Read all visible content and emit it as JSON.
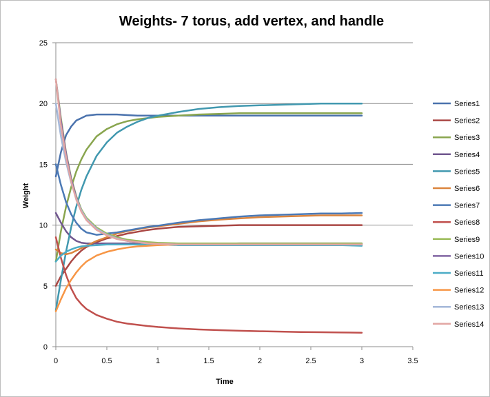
{
  "chart_data": {
    "type": "line",
    "title": "Weights- 7 torus, add vertex, and handle",
    "xlabel": "Time",
    "ylabel": "Weight",
    "xlim": [
      0,
      3.5
    ],
    "ylim": [
      0,
      25
    ],
    "xticks": [
      "0",
      "0.5",
      "1",
      "1.5",
      "2",
      "2.5",
      "3",
      "3.5"
    ],
    "yticks": [
      "0",
      "5",
      "10",
      "15",
      "20",
      "25"
    ],
    "grid": "horizontal",
    "legend": "right",
    "x": [
      0,
      0.05,
      0.1,
      0.15,
      0.2,
      0.25,
      0.3,
      0.4,
      0.5,
      0.6,
      0.7,
      0.8,
      0.9,
      1.0,
      1.2,
      1.4,
      1.6,
      1.8,
      2.0,
      2.2,
      2.4,
      2.6,
      2.8,
      3.0
    ],
    "series": [
      {
        "name": "Series1",
        "color": "#4a72ad",
        "values": [
          14,
          16,
          17.4,
          18.1,
          18.6,
          18.8,
          19.0,
          19.1,
          19.1,
          19.1,
          19.05,
          19.0,
          19.0,
          19.0,
          19.0,
          19.0,
          19.0,
          19.0,
          19.0,
          19.0,
          19.0,
          19.0,
          19.0,
          19.0
        ]
      },
      {
        "name": "Series2",
        "color": "#aa4744",
        "values": [
          5,
          5.8,
          6.4,
          7.0,
          7.5,
          7.9,
          8.2,
          8.6,
          8.9,
          9.1,
          9.3,
          9.45,
          9.6,
          9.7,
          9.85,
          9.9,
          9.95,
          10.0,
          10.0,
          10.0,
          10.0,
          10.0,
          10.0,
          10.0
        ]
      },
      {
        "name": "Series3",
        "color": "#89a54e",
        "values": [
          7,
          9.5,
          11.5,
          13.1,
          14.4,
          15.4,
          16.2,
          17.3,
          17.9,
          18.3,
          18.55,
          18.7,
          18.8,
          18.9,
          19.0,
          19.1,
          19.15,
          19.2,
          19.2,
          19.2,
          19.2,
          19.2,
          19.2,
          19.2
        ]
      },
      {
        "name": "Series4",
        "color": "#71588f",
        "values": [
          11,
          10.2,
          9.5,
          9.0,
          8.7,
          8.55,
          8.5,
          8.5,
          8.5,
          8.5,
          8.5,
          8.5,
          8.5,
          8.5,
          8.45,
          8.45,
          8.45,
          8.5,
          8.5,
          8.5,
          8.5,
          8.5,
          8.5,
          8.5
        ]
      },
      {
        "name": "Series5",
        "color": "#4198af",
        "values": [
          3,
          5.5,
          7.8,
          9.8,
          11.5,
          12.9,
          14.0,
          15.7,
          16.8,
          17.6,
          18.1,
          18.5,
          18.8,
          19.0,
          19.3,
          19.55,
          19.7,
          19.8,
          19.85,
          19.9,
          19.95,
          20.0,
          20.0,
          20.0
        ]
      },
      {
        "name": "Series6",
        "color": "#db843d",
        "values": [
          8,
          7.7,
          7.6,
          7.7,
          7.9,
          8.1,
          8.3,
          8.7,
          9.0,
          9.3,
          9.5,
          9.65,
          9.8,
          9.9,
          10.1,
          10.3,
          10.45,
          10.55,
          10.65,
          10.7,
          10.75,
          10.8,
          10.8,
          10.8
        ]
      },
      {
        "name": "Series7",
        "color": "#4b79b5",
        "values": [
          15,
          13.3,
          11.9,
          10.9,
          10.2,
          9.7,
          9.4,
          9.2,
          9.3,
          9.4,
          9.55,
          9.7,
          9.85,
          9.95,
          10.2,
          10.4,
          10.55,
          10.7,
          10.8,
          10.85,
          10.9,
          10.95,
          10.95,
          11.0
        ]
      },
      {
        "name": "Series8",
        "color": "#c0504d",
        "values": [
          9,
          7.3,
          5.9,
          4.8,
          4.0,
          3.5,
          3.1,
          2.6,
          2.3,
          2.05,
          1.9,
          1.8,
          1.7,
          1.62,
          1.5,
          1.42,
          1.36,
          1.31,
          1.27,
          1.24,
          1.21,
          1.19,
          1.17,
          1.15
        ]
      },
      {
        "name": "Series9",
        "color": "#9bbb59",
        "values": [
          22,
          18.8,
          16.0,
          13.9,
          12.4,
          11.3,
          10.6,
          9.8,
          9.3,
          9.0,
          8.8,
          8.7,
          8.6,
          8.55,
          8.5,
          8.5,
          8.5,
          8.5,
          8.5,
          8.5,
          8.5,
          8.5,
          8.5,
          8.5
        ]
      },
      {
        "name": "Series10",
        "color": "#8064a2",
        "values": [
          22,
          18.6,
          15.9,
          13.8,
          12.3,
          11.2,
          10.5,
          9.7,
          9.2,
          8.9,
          8.7,
          8.6,
          8.5,
          8.45,
          8.4,
          8.4,
          8.4,
          8.4,
          8.4,
          8.4,
          8.4,
          8.4,
          8.4,
          8.4
        ]
      },
      {
        "name": "Series11",
        "color": "#4bacc6",
        "values": [
          7,
          7.5,
          7.8,
          8.0,
          8.15,
          8.25,
          8.3,
          8.35,
          8.4,
          8.4,
          8.4,
          8.4,
          8.4,
          8.4,
          8.35,
          8.35,
          8.35,
          8.35,
          8.35,
          8.35,
          8.35,
          8.35,
          8.35,
          8.3
        ]
      },
      {
        "name": "Series12",
        "color": "#f79646",
        "values": [
          2.9,
          3.9,
          4.8,
          5.5,
          6.1,
          6.6,
          7.0,
          7.5,
          7.8,
          8.0,
          8.15,
          8.25,
          8.3,
          8.35,
          8.4,
          8.4,
          8.4,
          8.4,
          8.4,
          8.4,
          8.4,
          8.4,
          8.4,
          8.4
        ]
      },
      {
        "name": "Series13",
        "color": "#a5b8d9",
        "values": [
          20,
          17.3,
          15.2,
          13.5,
          12.2,
          11.2,
          10.5,
          9.7,
          9.2,
          8.9,
          8.7,
          8.6,
          8.5,
          8.45,
          8.4,
          8.4,
          8.4,
          8.4,
          8.4,
          8.4,
          8.4,
          8.4,
          8.4,
          8.4
        ]
      },
      {
        "name": "Series14",
        "color": "#e2a6a3",
        "values": [
          22,
          18.2,
          15.6,
          13.6,
          12.1,
          11.1,
          10.4,
          9.6,
          9.15,
          8.85,
          8.7,
          8.6,
          8.5,
          8.45,
          8.4,
          8.4,
          8.4,
          8.4,
          8.4,
          8.4,
          8.4,
          8.4,
          8.4,
          8.4
        ]
      }
    ]
  }
}
